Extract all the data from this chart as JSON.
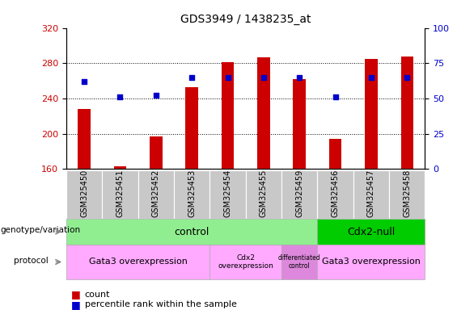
{
  "title": "GDS3949 / 1438235_at",
  "samples": [
    "GSM325450",
    "GSM325451",
    "GSM325452",
    "GSM325453",
    "GSM325454",
    "GSM325455",
    "GSM325459",
    "GSM325456",
    "GSM325457",
    "GSM325458"
  ],
  "counts": [
    228,
    163,
    197,
    253,
    281,
    287,
    262,
    194,
    285,
    288
  ],
  "percentiles": [
    62,
    51,
    52,
    65,
    65,
    65,
    65,
    51,
    65,
    65
  ],
  "ylim_left": [
    160,
    320
  ],
  "ylim_right": [
    0,
    100
  ],
  "left_ticks": [
    160,
    200,
    240,
    280,
    320
  ],
  "right_ticks": [
    0,
    25,
    50,
    75,
    100
  ],
  "bar_color": "#cc0000",
  "dot_color": "#0000cc",
  "bar_width": 0.35,
  "genotype_control_color": "#90ee90",
  "genotype_cdx2_color": "#00cc00",
  "protocol_color": "#ffaaff",
  "protocol_diff_color": "#dd88dd",
  "left_label_color": "#cc0000",
  "right_label_color": "#0000cc",
  "tick_label_bg": "#c8c8c8",
  "genotype_control_label": "control",
  "genotype_cdx2_label": "Cdx2-null",
  "protocol_gata3_1_label": "Gata3 overexpression",
  "protocol_cdx2_label": "Cdx2\noverexpression",
  "protocol_diff_label": "differentiated\ncontrol",
  "protocol_gata3_2_label": "Gata3 overexpression",
  "row_label_genotype": "genotype/variation",
  "row_label_protocol": "protocol",
  "legend_count_label": "count",
  "legend_pct_label": "percentile rank within the sample"
}
